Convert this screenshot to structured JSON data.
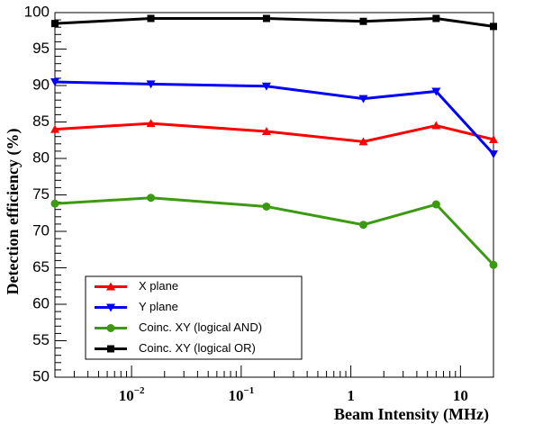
{
  "chart_data": {
    "type": "line",
    "title": "",
    "xlabel": "Beam Intensity (MHz)",
    "ylabel": "Detection efficiency (%)",
    "x_scale": "log",
    "xlim": [
      0.002,
      20
    ],
    "ylim": [
      50,
      100
    ],
    "grid": false,
    "legend_position": "bottom-left",
    "x": [
      0.002,
      0.015,
      0.17,
      1.3,
      6,
      20
    ],
    "y_ticks": [
      50,
      55,
      60,
      65,
      70,
      75,
      80,
      85,
      90,
      95,
      100
    ],
    "x_ticks": [
      {
        "value": 0.01,
        "base": "10",
        "exp": "−2"
      },
      {
        "value": 0.1,
        "base": "10",
        "exp": "−1"
      },
      {
        "value": 1,
        "base": "1",
        "exp": ""
      },
      {
        "value": 10,
        "base": "10",
        "exp": ""
      }
    ],
    "series": [
      {
        "name": "X plane",
        "color": "#ff0000",
        "marker": "triangle-up",
        "values": [
          84.0,
          84.8,
          83.7,
          82.3,
          84.5,
          82.6
        ]
      },
      {
        "name": "Y plane",
        "color": "#0000ff",
        "marker": "triangle-down",
        "values": [
          90.5,
          90.2,
          89.9,
          88.2,
          89.2,
          80.6
        ]
      },
      {
        "name": "Coinc. XY (logical AND)",
        "color": "#3c9a12",
        "marker": "circle",
        "values": [
          73.8,
          74.6,
          73.4,
          70.9,
          73.7,
          65.4
        ]
      },
      {
        "name": "Coinc. XY (logical OR)",
        "color": "#000000",
        "marker": "square",
        "values": [
          98.5,
          99.2,
          99.2,
          98.8,
          99.2,
          98.1
        ]
      }
    ]
  }
}
